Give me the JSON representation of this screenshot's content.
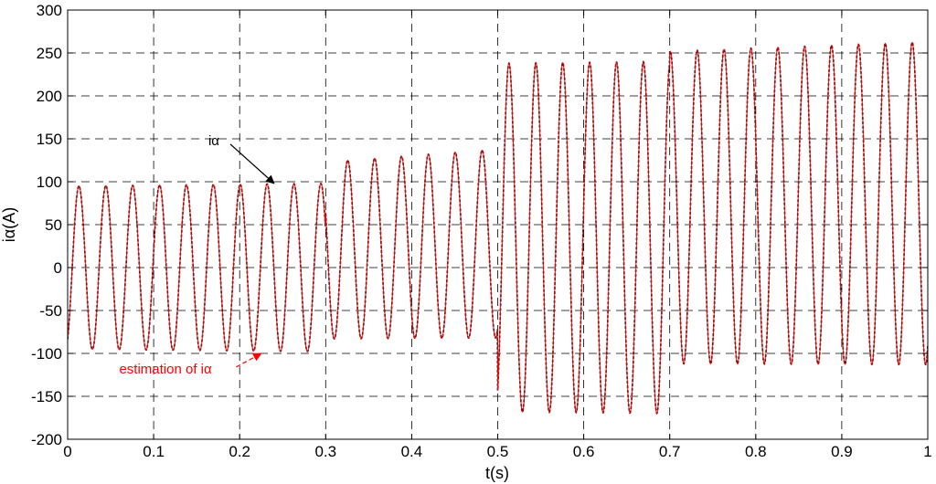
{
  "chart_data": {
    "type": "line",
    "xlabel": "t(s)",
    "ylabel": "iα(A)",
    "xlim": [
      0,
      1
    ],
    "ylim": [
      -200,
      300
    ],
    "xticks": [
      0,
      0.1,
      0.2,
      0.3,
      0.4,
      0.5,
      0.6,
      0.7,
      0.8,
      0.9,
      1
    ],
    "yticks": [
      -200,
      -150,
      -100,
      -50,
      0,
      50,
      100,
      150,
      200,
      250,
      300
    ],
    "grid": true,
    "frequency_hz": 32,
    "segments": [
      {
        "t_start": 0.0,
        "t_end": 0.3,
        "offset_start": 0,
        "offset_end": 0,
        "amp_start": 95,
        "amp_end": 98
      },
      {
        "t_start": 0.3,
        "t_end": 0.5,
        "offset_start": 20,
        "offset_end": 28,
        "amp_start": 103,
        "amp_end": 110
      },
      {
        "t_start": 0.5,
        "t_end": 0.7,
        "offset_start": 35,
        "offset_end": 35,
        "amp_start": 203,
        "amp_end": 205
      },
      {
        "t_start": 0.7,
        "t_end": 1.0,
        "offset_start": 70,
        "offset_end": 75,
        "amp_start": 182,
        "amp_end": 188
      }
    ],
    "series": [
      {
        "name": "iα",
        "color": "#000000",
        "style": "dashed"
      },
      {
        "name": "estimation of iα",
        "color": "#ff0000",
        "style": "solid"
      }
    ],
    "annotations": [
      {
        "text": "iα",
        "color": "#000000",
        "point": [
          0.24,
          98
        ],
        "label_pos": [
          0.17,
          148
        ]
      },
      {
        "text": "estimation of iα",
        "color": "#ff0000",
        "point": [
          0.225,
          -100
        ],
        "label_pos": [
          0.06,
          -118
        ]
      }
    ]
  }
}
